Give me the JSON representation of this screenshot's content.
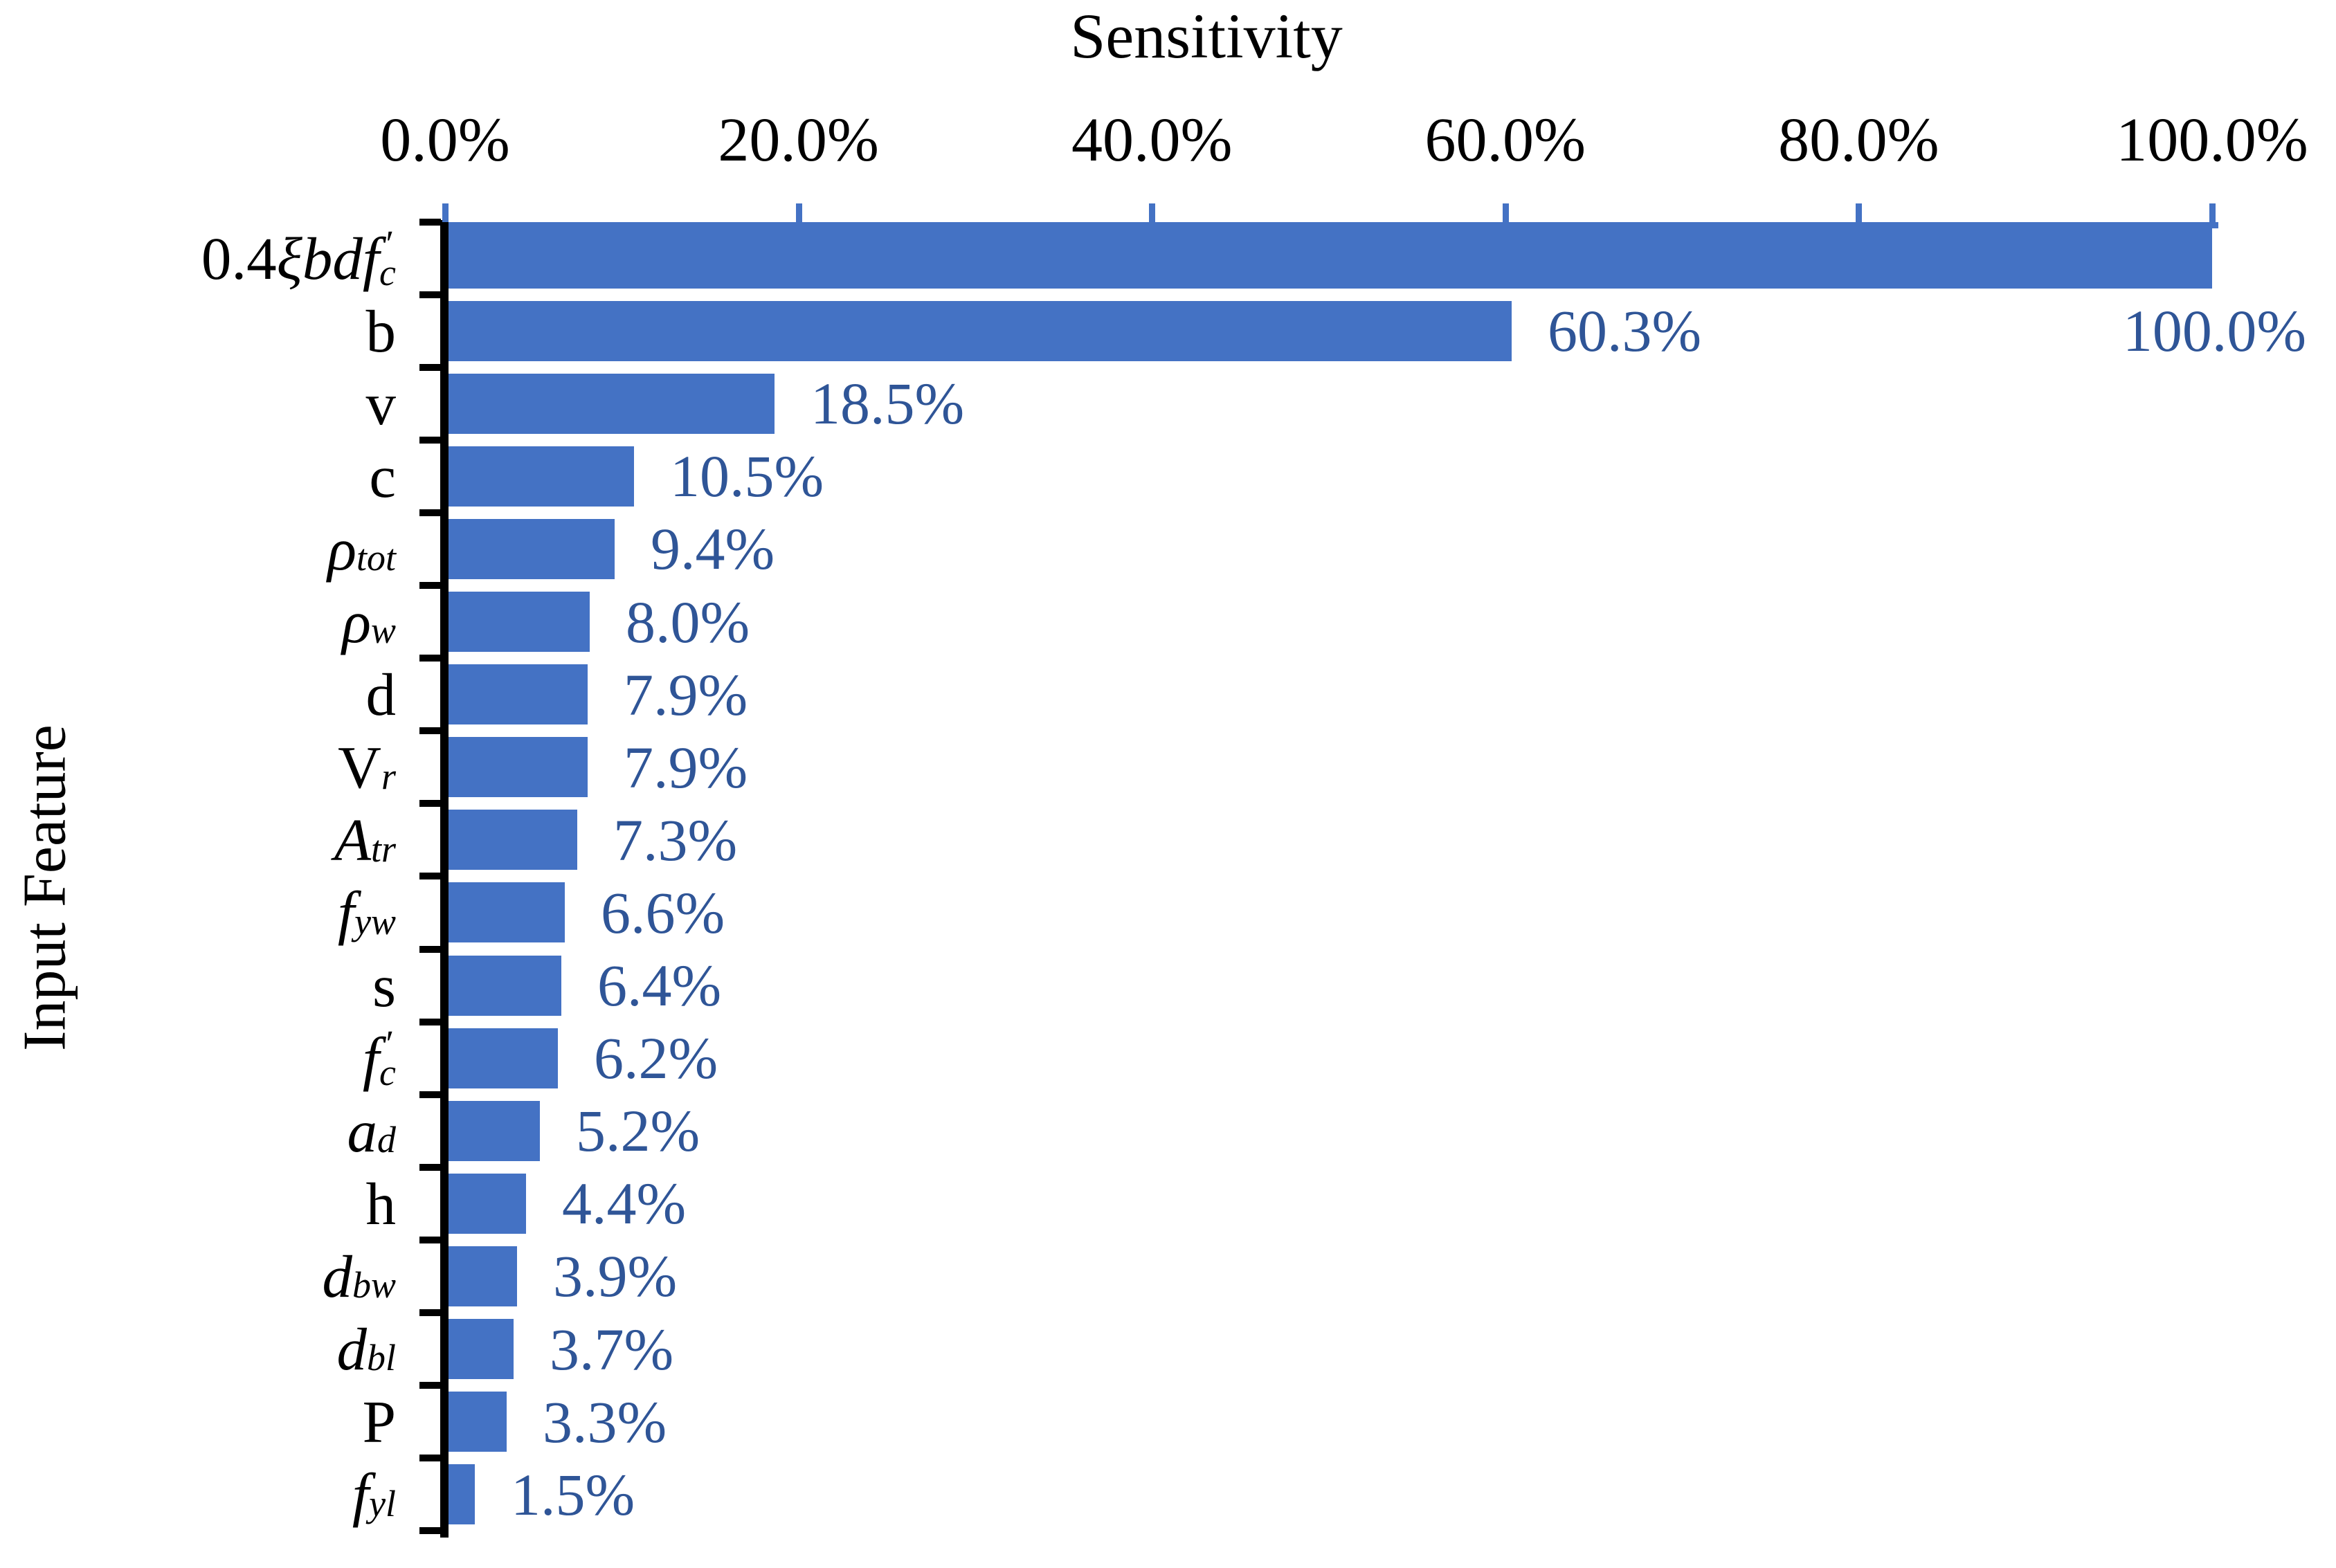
{
  "title": "Sensitivity",
  "background": "#FFFFFF",
  "colors": {
    "bar": "#4472C4",
    "value_label": "#2F5597",
    "x_axis_line": "#4472C4",
    "x_tick": "#4472C4",
    "y_axis_line": "#000000",
    "y_tick": "#000000",
    "text": "#000000"
  },
  "chart_data": {
    "type": "bar",
    "orientation": "horizontal",
    "title": "Sensitivity",
    "xlabel": "Sensitivity",
    "ylabel": "Input Feature",
    "xlim": [
      0,
      100
    ],
    "grid": false,
    "legend": false,
    "x_tick_labels": [
      "0.0%",
      "20.0%",
      "40.0%",
      "60.0%",
      "80.0%",
      "100.0%"
    ],
    "x_tick_values": [
      0,
      20,
      40,
      60,
      80,
      100
    ],
    "categories": [
      "0.4ξbdf′c",
      "b",
      "v",
      "c",
      "ρtot",
      "ρw",
      "d",
      "Vr",
      "Atr",
      "fyw",
      "s",
      "f′c",
      "ad",
      "h",
      "dbw",
      "dbl",
      "P",
      "fyl"
    ],
    "categories_rich": [
      [
        {
          "s": "n",
          "t": "0.4"
        },
        {
          "s": "i",
          "t": "ξbdf"
        },
        {
          "s": "ps",
          "p": "′",
          "t": "c"
        }
      ],
      [
        {
          "s": "n",
          "t": "b"
        }
      ],
      [
        {
          "s": "n",
          "t": "v"
        }
      ],
      [
        {
          "s": "n",
          "t": "c"
        }
      ],
      [
        {
          "s": "i",
          "t": "ρ"
        },
        {
          "s": "b",
          "t": "tot"
        }
      ],
      [
        {
          "s": "i",
          "t": "ρ"
        },
        {
          "s": "b",
          "t": "w"
        }
      ],
      [
        {
          "s": "n",
          "t": "d"
        }
      ],
      [
        {
          "s": "n",
          "t": "V"
        },
        {
          "s": "b",
          "t": "r"
        }
      ],
      [
        {
          "s": "i",
          "t": "A"
        },
        {
          "s": "b",
          "t": "tr"
        }
      ],
      [
        {
          "s": "i",
          "t": "f"
        },
        {
          "s": "b",
          "t": "yw"
        }
      ],
      [
        {
          "s": "n",
          "t": "s"
        }
      ],
      [
        {
          "s": "i",
          "t": "f"
        },
        {
          "s": "ps",
          "p": "′",
          "t": "c"
        }
      ],
      [
        {
          "s": "i",
          "t": "a"
        },
        {
          "s": "b",
          "t": "d"
        }
      ],
      [
        {
          "s": "n",
          "t": "h"
        }
      ],
      [
        {
          "s": "i",
          "t": "d"
        },
        {
          "s": "b",
          "t": "bw"
        }
      ],
      [
        {
          "s": "i",
          "t": "d"
        },
        {
          "s": "b",
          "t": "bl"
        }
      ],
      [
        {
          "s": "n",
          "t": "P"
        }
      ],
      [
        {
          "s": "i",
          "t": "f"
        },
        {
          "s": "b",
          "t": "yl"
        }
      ]
    ],
    "values": [
      100.0,
      60.3,
      18.5,
      10.5,
      9.4,
      8.0,
      7.9,
      7.9,
      7.3,
      6.6,
      6.4,
      6.2,
      5.2,
      4.4,
      3.9,
      3.7,
      3.3,
      1.5
    ],
    "value_labels": [
      "100.0%",
      "60.3%",
      "18.5%",
      "10.5%",
      "9.4%",
      "8.0%",
      "7.9%",
      "7.9%",
      "7.3%",
      "6.6%",
      "6.4%",
      "6.2%",
      "5.2%",
      "4.4%",
      "3.9%",
      "3.7%",
      "3.3%",
      "1.5%"
    ]
  }
}
